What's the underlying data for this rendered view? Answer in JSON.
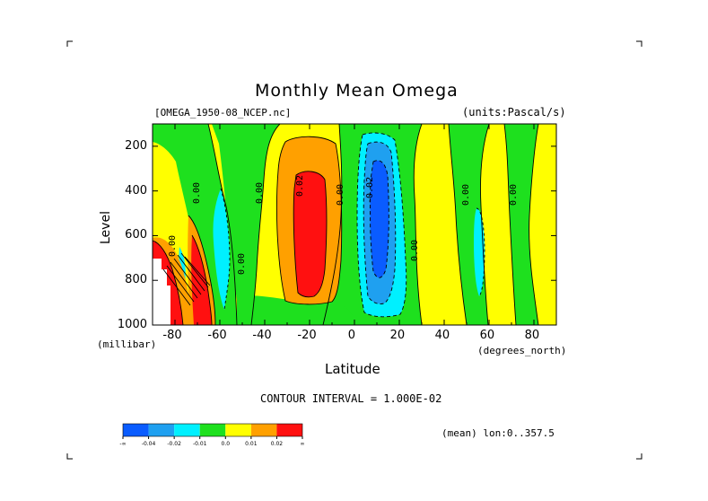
{
  "chart_data": {
    "type": "heatmap",
    "title": "Monthly Mean Omega",
    "dataset_label": "[OMEGA_1950-08_NCEP.nc]",
    "units_label": "(units:Pascal/s)",
    "xlabel": "Latitude",
    "x_units": "(degrees_north)",
    "ylabel": "Level",
    "y_units": "(millibar)",
    "xlim": [
      -90,
      90
    ],
    "ylim": [
      1000,
      100
    ],
    "x_ticks": [
      -80,
      -60,
      -40,
      -20,
      0,
      20,
      40,
      60,
      80
    ],
    "x_tick_labels": [
      "-80",
      "-60",
      "-40",
      "-20",
      "0",
      "20",
      "40",
      "60",
      "80"
    ],
    "y_ticks": [
      200,
      400,
      600,
      800,
      1000
    ],
    "y_tick_labels": [
      "200",
      "400",
      "600",
      "800",
      "1000"
    ],
    "contour_interval_label": "CONTOUR INTERVAL = 1.000E-02",
    "mean_label": "(mean) lon:0..357.5",
    "contour_labels": [
      {
        "text": "0.00",
        "lat": -70,
        "lev": 400
      },
      {
        "text": "0.00",
        "lat": -42,
        "lev": 400
      },
      {
        "text": "0.00",
        "lat": -81,
        "lev": 640
      },
      {
        "text": "0.00",
        "lat": -50,
        "lev": 720
      },
      {
        "text": "0.02",
        "lat": -24,
        "lev": 370
      },
      {
        "text": "0.00",
        "lat": -6,
        "lev": 410
      },
      {
        "text": "-0.02",
        "lat": 7,
        "lev": 400
      },
      {
        "text": "0.00",
        "lat": 27,
        "lev": 660
      },
      {
        "text": "0.00",
        "lat": 50,
        "lev": 410
      },
      {
        "text": "0.00",
        "lat": 71,
        "lev": 410
      }
    ],
    "legend": {
      "colors": [
        "#0a5cff",
        "#1fa0f0",
        "#00f0ff",
        "#1ee01e",
        "#ffff00",
        "#ffa000",
        "#ff1010"
      ],
      "labels": [
        "-∞",
        "-0.04",
        "-0.02",
        "-0.01",
        "0.0",
        "0.01",
        "0.02",
        "∞"
      ]
    },
    "fields": [
      {
        "name": "background_positive",
        "value_class": "0.0..0.01",
        "color": "#ffff00"
      },
      {
        "name": "southern_ascent_band",
        "value_class": "0.01..0.02",
        "color": "#ffa000",
        "region": {
          "lat": [
            -32,
            -10
          ],
          "lev": [
            120,
            980
          ]
        }
      },
      {
        "name": "southern_descent_core",
        "value_class": ">0.02",
        "color": "#ff1010",
        "region": {
          "lat": [
            -28,
            -12
          ],
          "lev": [
            200,
            880
          ]
        }
      },
      {
        "name": "tropical_ascent",
        "value_class": "-0.02..-0.01",
        "color": "#00f0ff",
        "region": {
          "lat": [
            1,
            18
          ],
          "lev": [
            115,
            990
          ]
        }
      },
      {
        "name": "tropical_ascent_core",
        "value_class": "-0.04..-0.02",
        "color": "#1fa0f0",
        "region": {
          "lat": [
            4,
            14
          ],
          "lev": [
            140,
            900
          ]
        }
      },
      {
        "name": "tropical_ascent_inner",
        "value_class": "<-0.04",
        "color": "#0a5cff",
        "region": {
          "lat": [
            6,
            12
          ],
          "lev": [
            300,
            720
          ]
        }
      },
      {
        "name": "antarctic_high_terrain",
        "value_class": "missing",
        "color": "#ffffff",
        "region": {
          "lat": [
            -90,
            -84
          ],
          "lev": [
            700,
            1000
          ]
        }
      }
    ]
  }
}
